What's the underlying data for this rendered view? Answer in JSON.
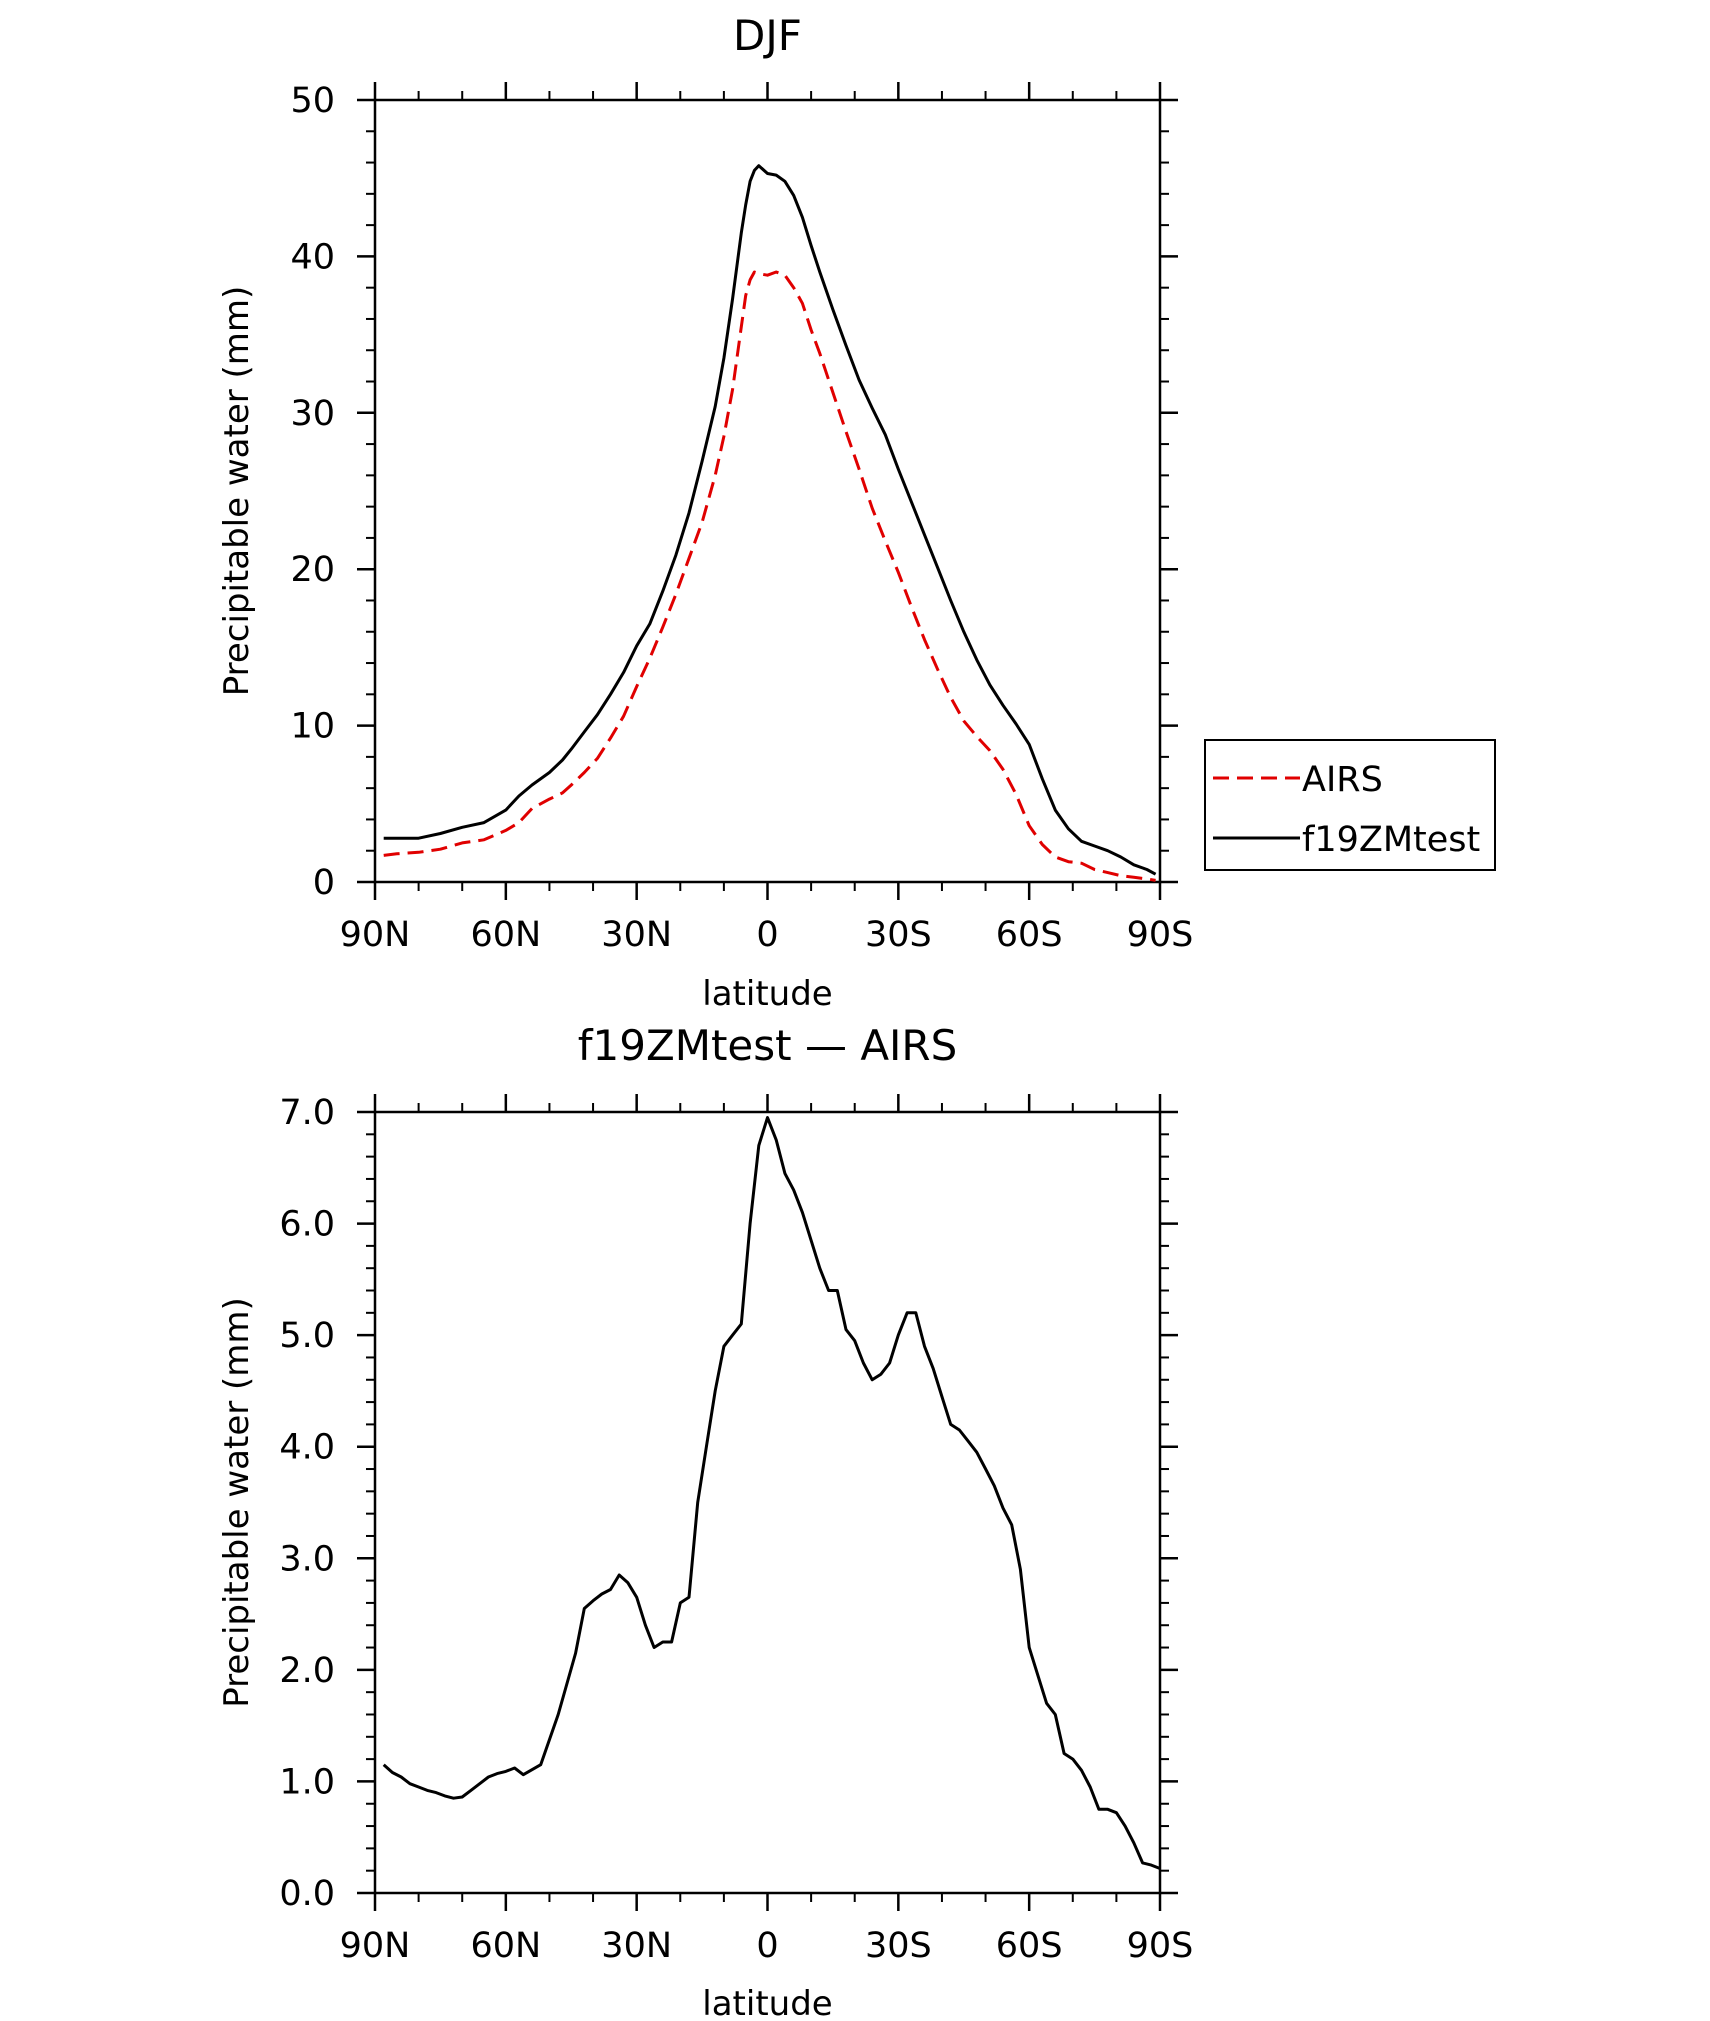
{
  "chart_data": [
    {
      "type": "line",
      "title": "DJF",
      "xlabel": "latitude",
      "ylabel": "Precipitable water (mm)",
      "xlim": [
        90,
        -90
      ],
      "ylim": [
        0,
        50
      ],
      "x_ticks": [
        90,
        60,
        30,
        0,
        -30,
        -60,
        -90
      ],
      "x_tick_labels": [
        "90N",
        "60N",
        "30N",
        "0",
        "30S",
        "60S",
        "90S"
      ],
      "y_ticks": [
        0,
        10,
        20,
        30,
        40,
        50
      ],
      "y_tick_labels": [
        "0",
        "10",
        "20",
        "30",
        "40",
        "50"
      ],
      "legend_position": "right",
      "series": [
        {
          "name": "AIRS",
          "color": "#e00000",
          "dash": "dashed",
          "x": [
            88,
            85,
            80,
            75,
            70,
            65,
            60,
            57,
            54,
            50,
            47,
            45,
            42,
            39,
            36,
            33,
            30,
            27,
            24,
            21,
            18,
            15,
            12,
            10,
            8,
            6,
            5,
            4,
            3,
            2,
            0,
            -2,
            -4,
            -6,
            -8,
            -10,
            -12,
            -15,
            -18,
            -21,
            -24,
            -27,
            -30,
            -33,
            -36,
            -39,
            -42,
            -45,
            -48,
            -51,
            -54,
            -57,
            -60,
            -63,
            -66,
            -69,
            -72,
            -75,
            -78,
            -81,
            -84,
            -87,
            -89
          ],
          "values": [
            1.7,
            1.8,
            1.9,
            2.1,
            2.5,
            2.7,
            3.3,
            3.8,
            4.7,
            5.3,
            5.7,
            6.2,
            7.0,
            7.9,
            9.2,
            10.6,
            12.5,
            14.3,
            16.3,
            18.4,
            20.7,
            23.0,
            26.0,
            28.5,
            31.5,
            35.5,
            37.5,
            38.5,
            39.0,
            38.9,
            38.8,
            39.0,
            38.8,
            38.0,
            37.0,
            35.3,
            33.8,
            31.3,
            28.8,
            26.4,
            23.9,
            21.8,
            19.8,
            17.6,
            15.5,
            13.6,
            11.8,
            10.3,
            9.3,
            8.4,
            7.2,
            5.6,
            3.6,
            2.4,
            1.6,
            1.3,
            1.2,
            0.8,
            0.6,
            0.4,
            0.3,
            0.2,
            0.1
          ]
        },
        {
          "name": "f19ZMtest",
          "color": "#000000",
          "dash": "solid",
          "x": [
            88,
            85,
            80,
            75,
            70,
            65,
            60,
            57,
            54,
            50,
            47,
            45,
            42,
            39,
            36,
            33,
            30,
            27,
            24,
            21,
            18,
            15,
            12,
            10,
            8,
            6,
            5,
            4,
            3,
            2,
            0,
            -2,
            -4,
            -6,
            -8,
            -10,
            -12,
            -15,
            -18,
            -21,
            -24,
            -27,
            -30,
            -33,
            -36,
            -39,
            -42,
            -45,
            -48,
            -51,
            -54,
            -57,
            -60,
            -63,
            -66,
            -69,
            -72,
            -75,
            -78,
            -81,
            -84,
            -87,
            -89
          ],
          "values": [
            2.8,
            2.8,
            2.8,
            3.1,
            3.5,
            3.8,
            4.6,
            5.5,
            6.2,
            7.0,
            7.8,
            8.5,
            9.6,
            10.7,
            12.0,
            13.4,
            15.1,
            16.5,
            18.6,
            20.9,
            23.6,
            26.9,
            30.4,
            33.5,
            37.3,
            41.5,
            43.3,
            44.8,
            45.5,
            45.8,
            45.3,
            45.2,
            44.8,
            43.9,
            42.5,
            40.7,
            39.0,
            36.6,
            34.3,
            32.1,
            30.3,
            28.6,
            26.4,
            24.3,
            22.2,
            20.1,
            18.0,
            16.0,
            14.2,
            12.6,
            11.3,
            10.1,
            8.8,
            6.6,
            4.6,
            3.4,
            2.6,
            2.3,
            2.0,
            1.6,
            1.1,
            0.8,
            0.5
          ]
        }
      ]
    },
    {
      "type": "line",
      "title": "f19ZMtest — AIRS",
      "xlabel": "latitude",
      "ylabel": "Precipitable water (mm)",
      "xlim": [
        90,
        -90
      ],
      "ylim": [
        0,
        7
      ],
      "x_ticks": [
        90,
        60,
        30,
        0,
        -30,
        -60,
        -90
      ],
      "x_tick_labels": [
        "90N",
        "60N",
        "30N",
        "0",
        "30S",
        "60S",
        "90S"
      ],
      "y_ticks": [
        0,
        1,
        2,
        3,
        4,
        5,
        6,
        7
      ],
      "y_tick_labels": [
        "0.0",
        "1.0",
        "2.0",
        "3.0",
        "4.0",
        "5.0",
        "6.0",
        "7.0"
      ],
      "series": [
        {
          "color": "#000000",
          "dash": "solid",
          "x": [
            88,
            86,
            84,
            82,
            80,
            78,
            76,
            74,
            72,
            70,
            68,
            66,
            64,
            62,
            60,
            58,
            56,
            52,
            48,
            44,
            42,
            40,
            38,
            36,
            34,
            32,
            30,
            28,
            26,
            24,
            22,
            20,
            18,
            16,
            14,
            12,
            10,
            8,
            6,
            4,
            2,
            0,
            -2,
            -4,
            -6,
            -8,
            -10,
            -12,
            -14,
            -16,
            -18,
            -20,
            -22,
            -24,
            -26,
            -28,
            -30,
            -32,
            -34,
            -36,
            -38,
            -40,
            -42,
            -44,
            -46,
            -48,
            -50,
            -52,
            -54,
            -56,
            -58,
            -60,
            -62,
            -64,
            -66,
            -68,
            -70,
            -72,
            -74,
            -76,
            -78,
            -80,
            -82,
            -84,
            -86,
            -88,
            -90
          ],
          "values": [
            1.15,
            1.08,
            1.04,
            0.98,
            0.95,
            0.92,
            0.9,
            0.87,
            0.85,
            0.86,
            0.92,
            0.98,
            1.04,
            1.07,
            1.09,
            1.12,
            1.06,
            1.15,
            1.6,
            2.15,
            2.55,
            2.62,
            2.68,
            2.72,
            2.85,
            2.78,
            2.65,
            2.4,
            2.2,
            2.25,
            2.25,
            2.6,
            2.65,
            3.5,
            4.0,
            4.5,
            4.9,
            5.0,
            5.1,
            6.0,
            6.7,
            6.95,
            6.75,
            6.45,
            6.3,
            6.1,
            5.85,
            5.6,
            5.4,
            5.4,
            5.05,
            4.95,
            4.75,
            4.6,
            4.65,
            4.75,
            5.0,
            5.2,
            5.2,
            4.9,
            4.7,
            4.45,
            4.2,
            4.15,
            4.05,
            3.95,
            3.8,
            3.65,
            3.45,
            3.3,
            2.9,
            2.2,
            1.95,
            1.7,
            1.6,
            1.25,
            1.2,
            1.1,
            0.95,
            0.75,
            0.75,
            0.72,
            0.6,
            0.45,
            0.27,
            0.25,
            0.22
          ]
        }
      ]
    }
  ]
}
